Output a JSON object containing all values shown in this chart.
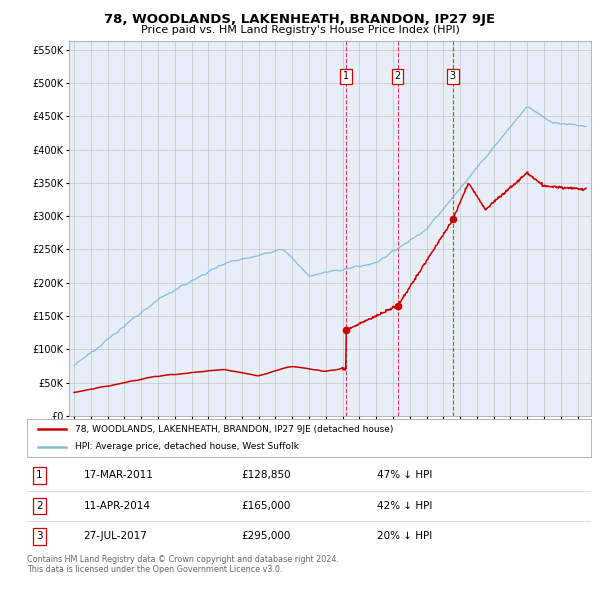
{
  "title": "78, WOODLANDS, LAKENHEATH, BRANDON, IP27 9JE",
  "subtitle": "Price paid vs. HM Land Registry's House Price Index (HPI)",
  "red_label": "78, WOODLANDS, LAKENHEATH, BRANDON, IP27 9JE (detached house)",
  "blue_label": "HPI: Average price, detached house, West Suffolk",
  "transactions": [
    {
      "num": 1,
      "date": "17-MAR-2011",
      "date_x": 2011.21,
      "price": 128850,
      "pct": "47% ↓ HPI"
    },
    {
      "num": 2,
      "date": "11-APR-2014",
      "date_x": 2014.28,
      "price": 165000,
      "pct": "42% ↓ HPI"
    },
    {
      "num": 3,
      "date": "27-JUL-2017",
      "date_x": 2017.57,
      "price": 295000,
      "pct": "20% ↓ HPI"
    }
  ],
  "footnote1": "Contains HM Land Registry data © Crown copyright and database right 2024.",
  "footnote2": "This data is licensed under the Open Government Licence v3.0.",
  "ylim": [
    0,
    562500
  ],
  "yticks": [
    0,
    50000,
    100000,
    150000,
    200000,
    250000,
    300000,
    350000,
    400000,
    450000,
    500000,
    550000
  ],
  "xlim_left": 1994.7,
  "xlim_right": 2025.8,
  "background_color": "#e8eef8",
  "red_color": "#cc0000",
  "blue_color": "#88bbdd"
}
